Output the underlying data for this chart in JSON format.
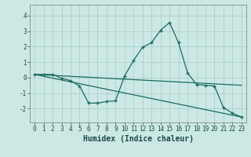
{
  "xlabel": "Humidex (Indice chaleur)",
  "background_color": "#cce8e4",
  "grid_color": "#aacfcb",
  "line_color": "#1a6b62",
  "xlim": [
    -0.5,
    23.5
  ],
  "ylim": [
    -2.9,
    4.7
  ],
  "yticks": [
    -2,
    -1,
    0,
    1,
    2,
    3,
    4
  ],
  "xticks": [
    0,
    1,
    2,
    3,
    4,
    5,
    6,
    7,
    8,
    9,
    10,
    11,
    12,
    13,
    14,
    15,
    16,
    17,
    18,
    19,
    20,
    21,
    22,
    23
  ],
  "series1_x": [
    0,
    1,
    2,
    3,
    4,
    5,
    6,
    7,
    8,
    9,
    10,
    11,
    12,
    13,
    14,
    15,
    16,
    17,
    18,
    19,
    20,
    21,
    22,
    23
  ],
  "series1_y": [
    0.2,
    0.2,
    0.2,
    -0.05,
    -0.2,
    -0.55,
    -1.65,
    -1.65,
    -1.55,
    -1.5,
    0.1,
    1.1,
    1.95,
    2.25,
    3.05,
    3.55,
    2.25,
    0.3,
    -0.45,
    -0.5,
    -0.55,
    -1.95,
    -2.3,
    -2.55
  ],
  "series2_x": [
    0,
    23
  ],
  "series2_y": [
    0.2,
    -2.55
  ],
  "series3_x": [
    0,
    23
  ],
  "series3_y": [
    0.2,
    -0.5
  ],
  "tick_fontsize": 5.5,
  "xlabel_fontsize": 7.0
}
